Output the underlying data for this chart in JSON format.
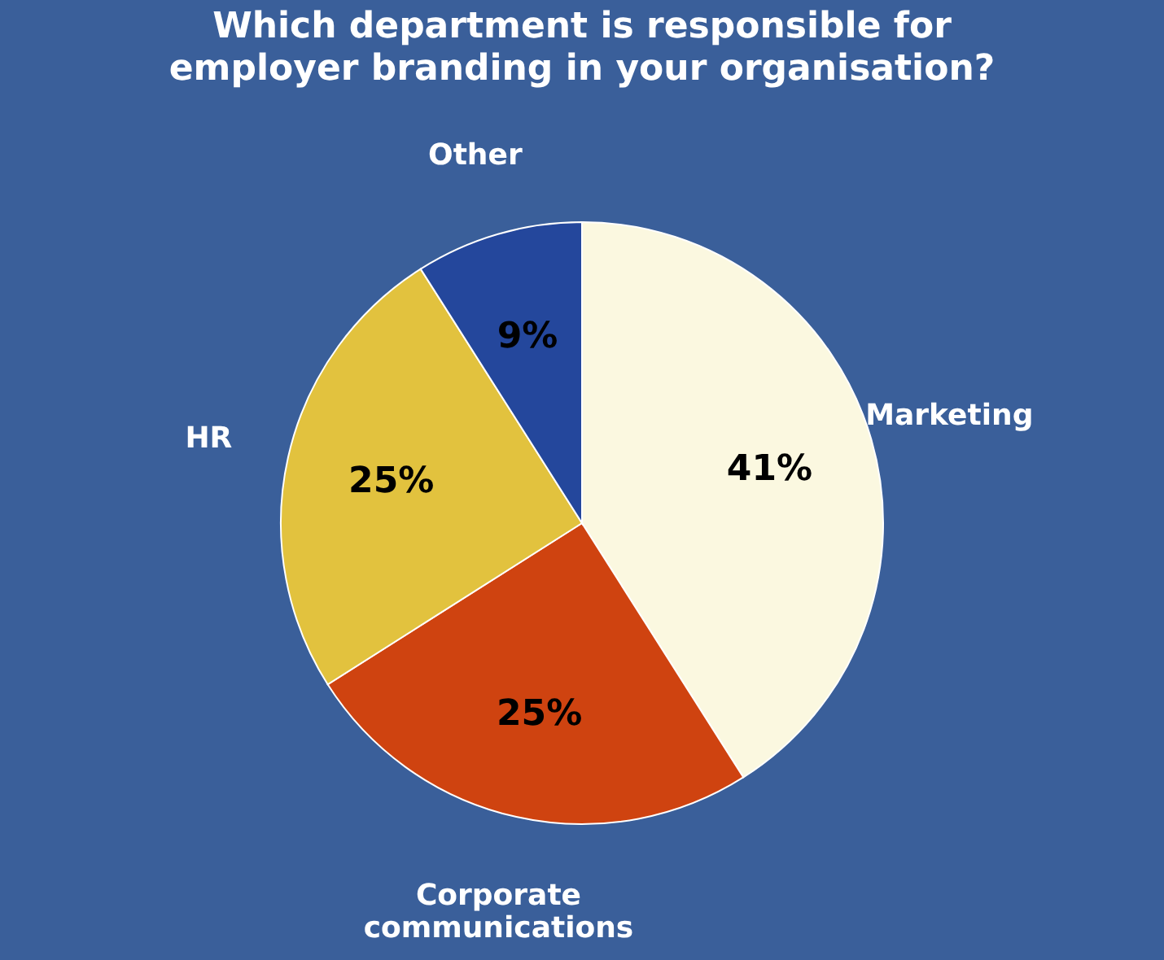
{
  "chart_data": {
    "type": "pie",
    "title": "Which department is responsible for employer branding in your organisation?",
    "categories": [
      "Marketing",
      "Corporate communications",
      "HR",
      "Other"
    ],
    "values": [
      41,
      25,
      25,
      9
    ],
    "value_labels": [
      "41%",
      "25%",
      "25%",
      "9%"
    ],
    "colors": [
      "#fbf8e0",
      "#cf4310",
      "#e2c23e",
      "#24479c"
    ],
    "legend": false
  }
}
